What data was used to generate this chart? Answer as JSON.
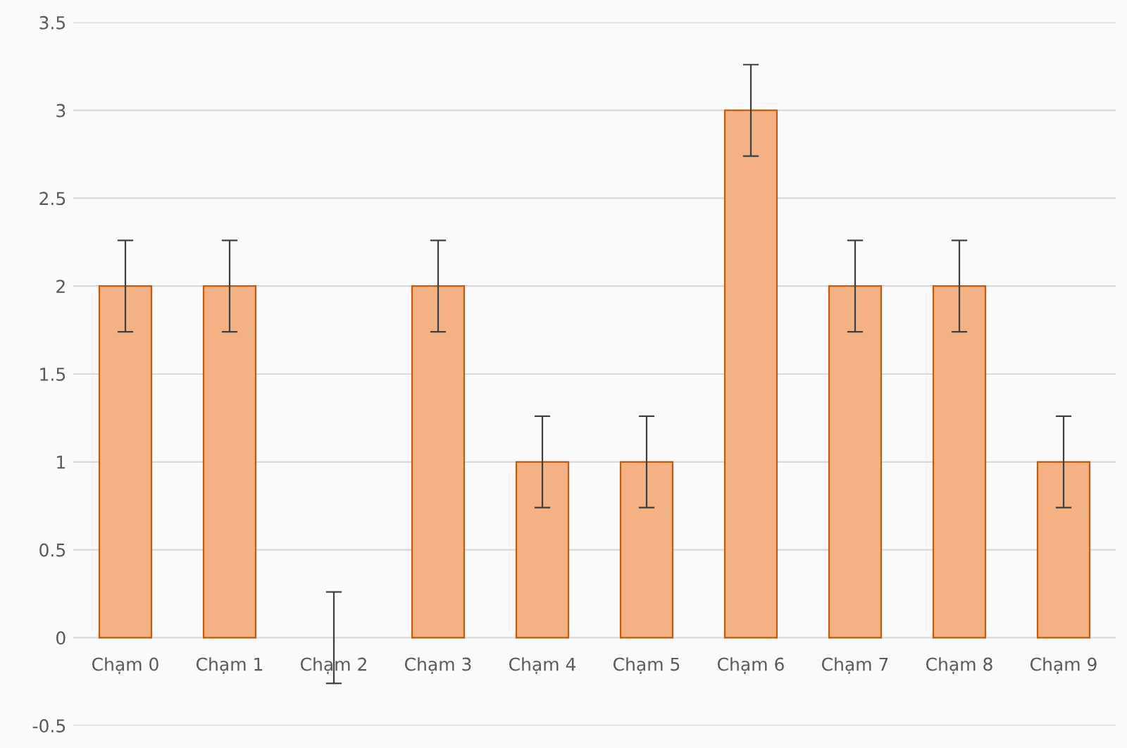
{
  "chart_data": {
    "type": "bar",
    "categories": [
      "Chạm 0",
      "Chạm 1",
      "Chạm 2",
      "Chạm 3",
      "Chạm 4",
      "Chạm 5",
      "Chạm 6",
      "Chạm 7",
      "Chạm 8",
      "Chạm 9"
    ],
    "series": [
      {
        "color": "#f4b183",
        "values": [
          2,
          2,
          0,
          2,
          1,
          1,
          3,
          2,
          2,
          1
        ],
        "errors": [
          0.26,
          0.26,
          0.26,
          0.26,
          0.26,
          0.26,
          0.26,
          0.26,
          0.26,
          0.26
        ]
      }
    ],
    "ylim": [
      -0.5,
      3.5
    ],
    "yticks": [
      -0.5,
      0,
      0.5,
      1,
      1.5,
      2,
      2.5,
      3,
      3.5
    ],
    "grid": "y",
    "legend": false
  }
}
